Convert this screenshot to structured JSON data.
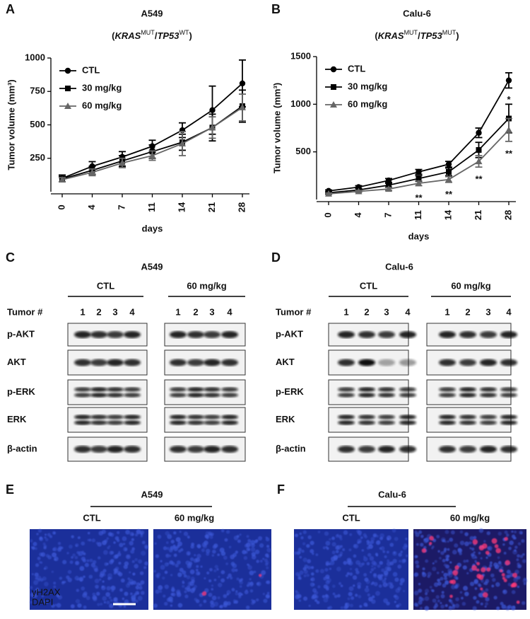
{
  "chart_data": [
    {
      "type": "line",
      "panel": "A",
      "title": "A549",
      "subtitle": [
        {
          "text": "(",
          "style": "normal"
        },
        {
          "text": "KRAS",
          "style": "italic"
        },
        {
          "text": "MUT",
          "style": "sup"
        },
        {
          "text": "/",
          "style": "normal"
        },
        {
          "text": "TP53",
          "style": "italic"
        },
        {
          "text": "WT",
          "style": "sup"
        },
        {
          "text": ")",
          "style": "normal"
        }
      ],
      "xlabel": "days",
      "ylabel": "Tumor volume (mm³)",
      "categories": [
        "0",
        "4",
        "7",
        "11",
        "14",
        "21",
        "28"
      ],
      "ylim": [
        0,
        1000
      ],
      "yticks": [
        250,
        500,
        750,
        1000
      ],
      "legend": "top-left",
      "series": [
        {
          "name": "CTL",
          "color": "#000000",
          "marker": "circle",
          "values": [
            100,
            190,
            260,
            340,
            460,
            610,
            810
          ],
          "errors": [
            25,
            35,
            40,
            45,
            55,
            180,
            175
          ]
        },
        {
          "name": "30 mg/kg",
          "color": "#000000",
          "marker": "square",
          "values": [
            95,
            160,
            230,
            300,
            370,
            480,
            640
          ],
          "errors": [
            20,
            30,
            40,
            50,
            60,
            100,
            120
          ]
        },
        {
          "name": "60 mg/kg",
          "color": "#666666",
          "marker": "triangle",
          "values": [
            90,
            145,
            215,
            270,
            360,
            480,
            630
          ],
          "errors": [
            15,
            25,
            35,
            35,
            90,
            80,
            100
          ]
        }
      ],
      "annotations": []
    },
    {
      "type": "line",
      "panel": "B",
      "title": "Calu-6",
      "subtitle": [
        {
          "text": "(",
          "style": "normal"
        },
        {
          "text": "KRAS",
          "style": "italic"
        },
        {
          "text": "MUT",
          "style": "sup"
        },
        {
          "text": "/",
          "style": "normal"
        },
        {
          "text": "TP53",
          "style": "italic"
        },
        {
          "text": "MUT",
          "style": "sup"
        },
        {
          "text": ")",
          "style": "normal"
        }
      ],
      "xlabel": "days",
      "ylabel": "Tumor volume (mm³)",
      "categories": [
        "0",
        "4",
        "7",
        "11",
        "14",
        "21",
        "28"
      ],
      "ylim": [
        0,
        1500
      ],
      "yticks": [
        500,
        1000,
        1500
      ],
      "legend": "top-left",
      "series": [
        {
          "name": "CTL",
          "color": "#000000",
          "marker": "circle",
          "values": [
            90,
            130,
            200,
            290,
            370,
            700,
            1250
          ],
          "errors": [
            10,
            15,
            20,
            25,
            30,
            50,
            80
          ]
        },
        {
          "name": "30 mg/kg",
          "color": "#000000",
          "marker": "square",
          "values": [
            70,
            100,
            150,
            220,
            290,
            520,
            850
          ],
          "errors": [
            10,
            15,
            20,
            30,
            40,
            80,
            150
          ]
        },
        {
          "name": "60 mg/kg",
          "color": "#666666",
          "marker": "triangle",
          "values": [
            60,
            85,
            110,
            170,
            210,
            400,
            730
          ],
          "errors": [
            8,
            10,
            15,
            25,
            30,
            60,
            120
          ]
        }
      ],
      "annotations": [
        {
          "text": "**",
          "series": 2,
          "index": 3
        },
        {
          "text": "**",
          "series": 2,
          "index": 4
        },
        {
          "text": "**",
          "series": 2,
          "index": 5
        },
        {
          "text": "**",
          "series": 2,
          "index": 6
        },
        {
          "text": "*",
          "series": 1,
          "index": 6
        }
      ]
    }
  ],
  "blots": [
    {
      "panel": "C",
      "title": "A549",
      "lane_header": "Tumor #",
      "groups": [
        {
          "label": "CTL",
          "lanes": [
            "1",
            "2",
            "3",
            "4"
          ]
        },
        {
          "label": "60 mg/kg",
          "lanes": [
            "1",
            "2",
            "3",
            "4"
          ]
        }
      ],
      "rows": [
        "p-AKT",
        "AKT",
        "p-ERK",
        "ERK",
        "β-actin"
      ]
    },
    {
      "panel": "D",
      "title": "Calu-6",
      "lane_header": "Tumor #",
      "groups": [
        {
          "label": "CTL",
          "lanes": [
            "1",
            "2",
            "3",
            "4"
          ]
        },
        {
          "label": "60 mg/kg",
          "lanes": [
            "1",
            "2",
            "3",
            "4"
          ]
        }
      ],
      "rows": [
        "p-AKT",
        "AKT",
        "p-ERK",
        "ERK",
        "β-actin"
      ]
    }
  ],
  "images": [
    {
      "panel": "E",
      "title": "A549",
      "conditions": [
        "CTL",
        "60 mg/kg"
      ],
      "stains": [
        "γH2AX",
        "DAPI"
      ]
    },
    {
      "panel": "F",
      "title": "Calu-6",
      "conditions": [
        "CTL",
        "60 mg/kg"
      ]
    }
  ]
}
